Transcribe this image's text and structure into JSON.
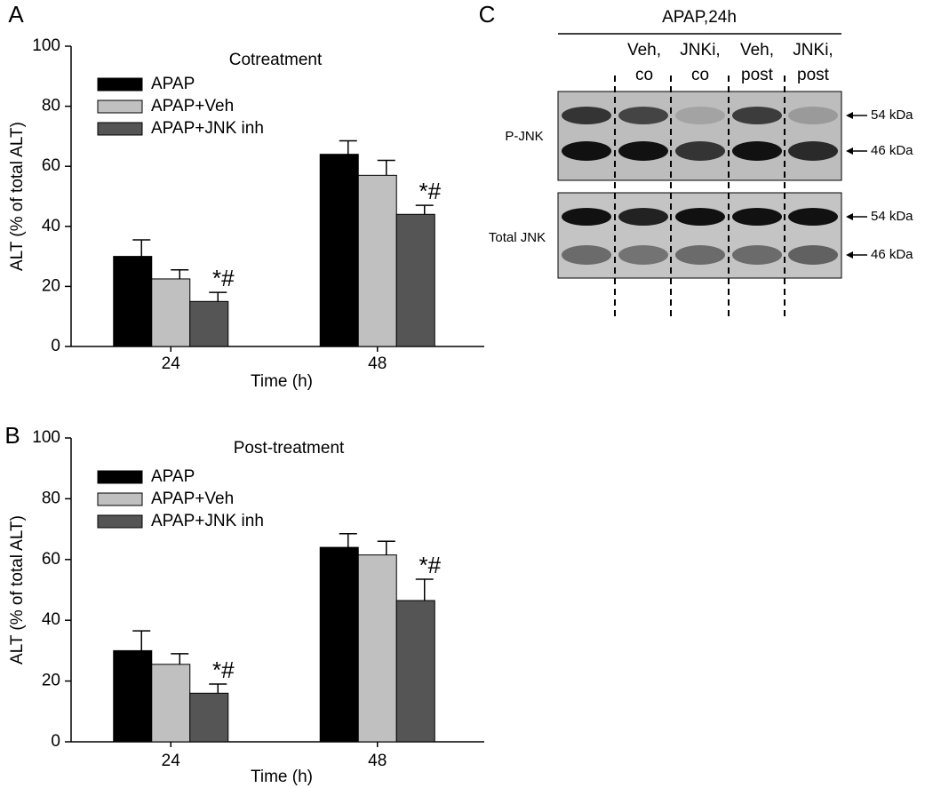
{
  "chart_data": [
    {
      "type": "bar",
      "panel": "A",
      "title": "Cotreatment",
      "xlabel": "Time (h)",
      "ylabel": "ALT (% of total ALT)",
      "categories": [
        "24",
        "48"
      ],
      "series": [
        {
          "name": "APAP",
          "color": "#000000",
          "values": [
            30,
            64
          ],
          "errors": [
            5.5,
            4.5
          ]
        },
        {
          "name": "APAP+Veh",
          "color": "#c0c0c0",
          "values": [
            22.5,
            57
          ],
          "errors": [
            3,
            5
          ]
        },
        {
          "name": "APAP+JNK inh",
          "color": "#555555",
          "values": [
            15,
            44
          ],
          "errors": [
            3,
            3
          ]
        }
      ],
      "annotations": [
        "*#",
        "*#"
      ],
      "ylim": [
        0,
        100
      ],
      "yticks": [
        0,
        20,
        40,
        60,
        80,
        100
      ],
      "legend": "upper left"
    },
    {
      "type": "bar",
      "panel": "B",
      "title": "Post-treatment",
      "xlabel": "Time (h)",
      "ylabel": "ALT (% of total ALT)",
      "categories": [
        "24",
        "48"
      ],
      "series": [
        {
          "name": "APAP",
          "color": "#000000",
          "values": [
            30,
            64
          ],
          "errors": [
            6.5,
            4.5
          ]
        },
        {
          "name": "APAP+Veh",
          "color": "#c0c0c0",
          "values": [
            25.5,
            61.5
          ],
          "errors": [
            3.5,
            4.5
          ]
        },
        {
          "name": "APAP+JNK inh",
          "color": "#555555",
          "values": [
            16,
            46.5
          ],
          "errors": [
            3,
            7
          ]
        }
      ],
      "annotations": [
        "*#",
        "*#"
      ],
      "ylim": [
        0,
        100
      ],
      "yticks": [
        0,
        20,
        40,
        60,
        80,
        100
      ],
      "legend": "upper left"
    }
  ],
  "blot": {
    "panel": "C",
    "header": "APAP,24h",
    "lanes": [
      [
        "Veh,",
        "co"
      ],
      [
        "JNKi,",
        "co"
      ],
      [
        "Veh,",
        "post"
      ],
      [
        "JNKi,",
        "post"
      ]
    ],
    "rows": [
      {
        "label": "P-JNK",
        "bands": [
          "54 kDa",
          "46 kDa"
        ]
      },
      {
        "label": "Total JNK",
        "bands": [
          "54 kDa",
          "46 kDa"
        ]
      }
    ]
  }
}
